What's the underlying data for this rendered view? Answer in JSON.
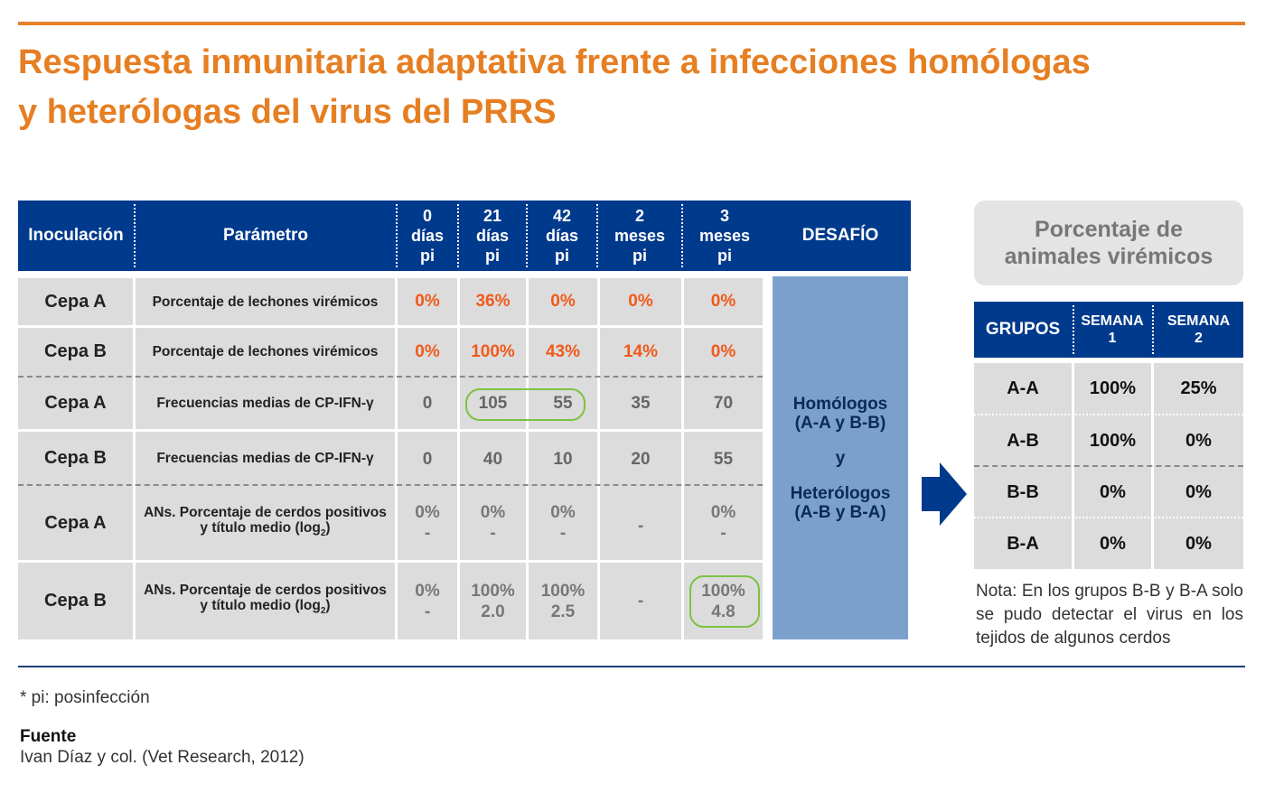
{
  "title": {
    "line1": "Respuesta inmunitaria adaptativa frente a infecciones homólogas",
    "line2": "y heterólogas del virus del PRRS"
  },
  "main_table": {
    "headers": {
      "inoculation": "Inoculación",
      "parameter": "Parámetro",
      "d0": [
        "0",
        "días",
        "pi"
      ],
      "d21": [
        "21",
        "días",
        "pi"
      ],
      "d42": [
        "42",
        "días",
        "pi"
      ],
      "m2": [
        "2",
        "meses",
        "pi"
      ],
      "m3": [
        "3",
        "meses",
        "pi"
      ],
      "challenge": "DESAFÍO"
    },
    "rows": [
      {
        "inoc": "Cepa A",
        "param": "Porcentaje de lechones virémicos",
        "v": [
          "0%",
          "36%",
          "0%",
          "0%",
          "0%"
        ]
      },
      {
        "inoc": "Cepa B",
        "param": "Porcentaje de lechones virémicos",
        "v": [
          "0%",
          "100%",
          "43%",
          "14%",
          "0%"
        ]
      },
      {
        "inoc": "Cepa A",
        "param": "Frecuencias medias de CP-IFN-γ",
        "v": [
          "0",
          "105",
          "55",
          "35",
          "70"
        ]
      },
      {
        "inoc": "Cepa B",
        "param": "Frecuencias medias de CP-IFN-γ",
        "v": [
          "0",
          "40",
          "10",
          "20",
          "55"
        ]
      },
      {
        "inoc": "Cepa A",
        "param_line1": "ANs. Porcentaje de cerdos positivos",
        "param_line2": "y título medio (log",
        "param_sub": "2",
        "param_close": ")",
        "v_top": [
          "0%",
          "0%",
          "0%",
          "-",
          "0%"
        ],
        "v_bottom": [
          "-",
          "-",
          "-",
          "",
          "-"
        ]
      },
      {
        "inoc": "Cepa B",
        "param_line1": "ANs. Porcentaje de cerdos positivos",
        "param_line2": "y título medio (log",
        "param_sub": "2",
        "param_close": ")",
        "v_top": [
          "0%",
          "100%",
          "100%",
          "-",
          "100%"
        ],
        "v_bottom": [
          "-",
          "2.0",
          "2.5",
          "",
          "4.8"
        ]
      }
    ],
    "challenge": {
      "line1": "Homólogos",
      "line2": "(A-A y B-B)",
      "line3": "y",
      "line4": "Heterólogos",
      "line5": "(A-B y B-A)"
    }
  },
  "right_panel": {
    "title_line1": "Porcentaje de",
    "title_line2": "animales virémicos",
    "headers": {
      "groups": "GRUPOS",
      "w1": [
        "SEMANA",
        "1"
      ],
      "w2": [
        "SEMANA",
        "2"
      ]
    },
    "rows": [
      {
        "group": "A-A",
        "w1": "100%",
        "w2": "25%"
      },
      {
        "group": "A-B",
        "w1": "100%",
        "w2": "0%"
      },
      {
        "group": "B-B",
        "w1": "0%",
        "w2": "0%"
      },
      {
        "group": "B-A",
        "w1": "0%",
        "w2": "0%"
      }
    ],
    "note": "Nota: En los grupos B-B y B-A solo se pudo detectar el virus en los tejidos de algunos cerdos"
  },
  "footnote": "* pi: posinfección",
  "source": {
    "label": "Fuente",
    "text": "Ivan Díaz y col. (Vet Research, 2012)"
  },
  "colors": {
    "accent_orange": "#e67e22",
    "header_blue": "#003a8c",
    "challenge_blue": "#7ba0cc",
    "value_orange": "#f05a1a",
    "highlight_green": "#7cc242"
  }
}
